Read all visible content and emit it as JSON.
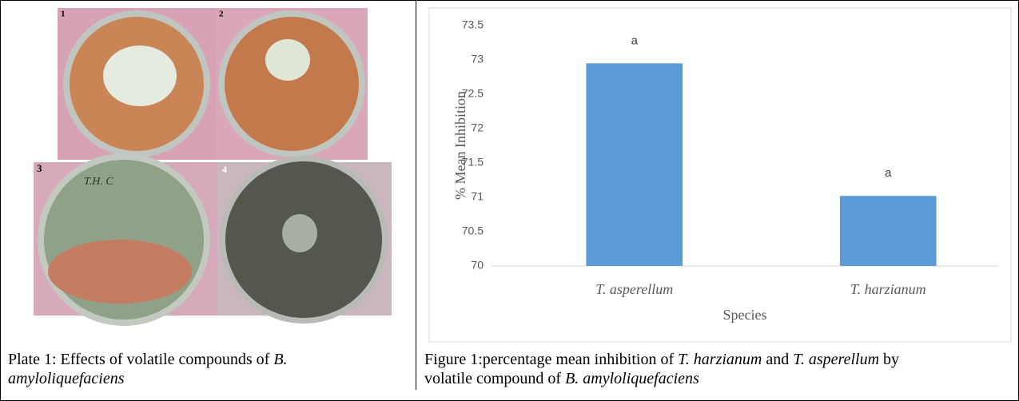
{
  "plate": {
    "photo_labels": [
      "1",
      "2",
      "3",
      "4"
    ],
    "dish_mark": "T.H. C",
    "caption": [
      "Plate 1: Effects of volatile compounds of ",
      "B. amyloliquefaciens"
    ]
  },
  "figure_caption": [
    "Figure 1:percentage mean inhibition of ",
    "T. harzianum",
    " and ",
    "T. asperellum",
    " by volatile compound of ",
    "B. amyloliquefaciens"
  ],
  "chart_data": {
    "type": "bar",
    "categories": [
      "T. asperellum",
      "T. harzianum"
    ],
    "values": [
      72.95,
      71.02
    ],
    "significance_labels": [
      "a",
      "a"
    ],
    "color": "#5b9bd5",
    "ylim": [
      70,
      73.5
    ],
    "yticks": [
      70,
      70.5,
      71,
      71.5,
      72,
      72.5,
      73,
      73.5
    ],
    "grid": false,
    "y_label": "% Mean Inhibition",
    "x_label": "Species"
  }
}
